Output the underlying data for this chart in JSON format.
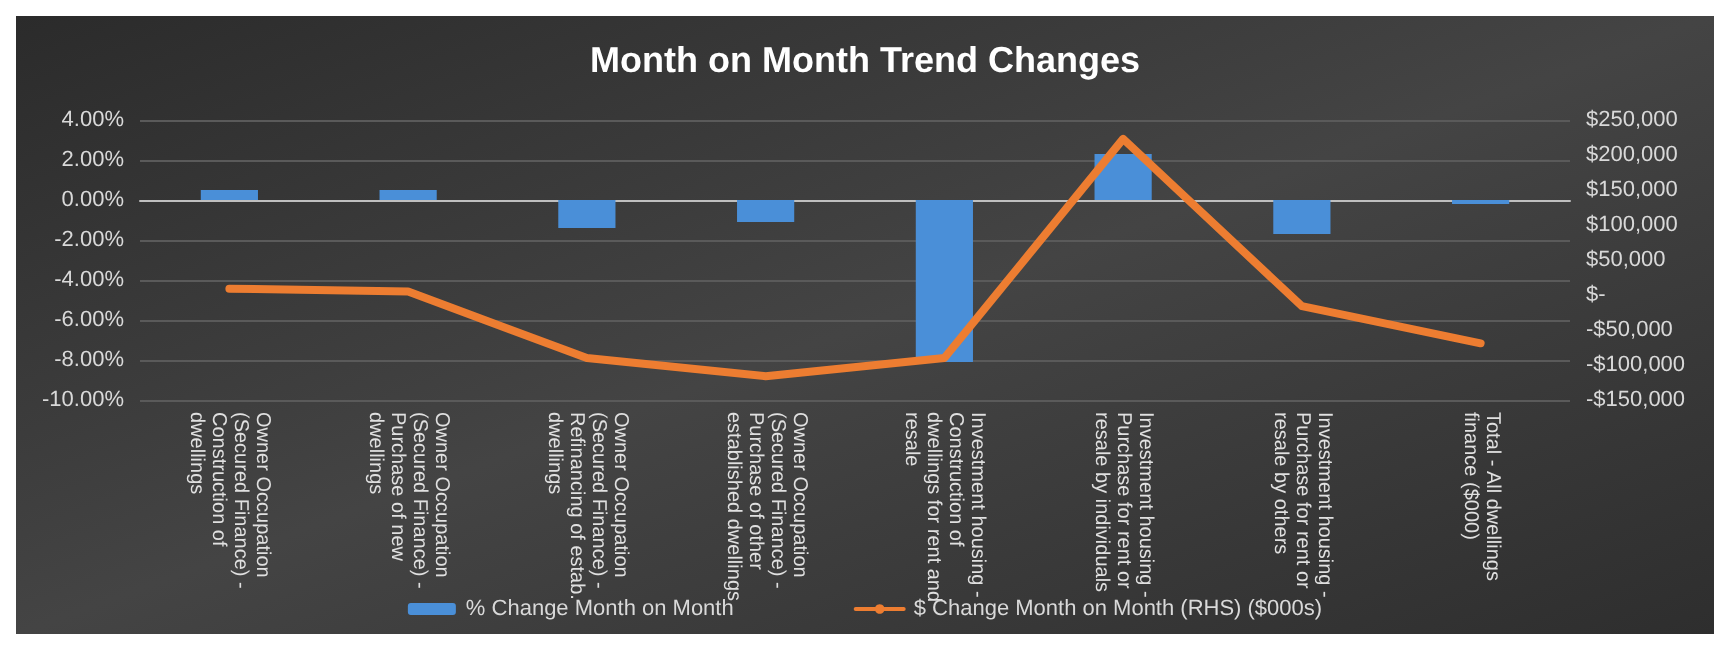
{
  "chart_data": {
    "type": "bar",
    "title": "Month on Month Trend Changes",
    "categories": [
      "Owner Occupation (Secured Finance) - Construction of dwellings",
      "Owner Occupation (Secured Finance) - Purchase of new dwellings",
      "Owner Occupation (Secured Finance) - Refinancing of estab. dwellings",
      "Owner Occupation (Secured Finance) - Purchase of other established dwellings",
      "Investment housing - Construction of dwellings for rent and resale",
      "Investment housing - Purchase for rent or resale by individuals",
      "Investment housing - Purchase for rent or resale by others",
      "Total - All dwellings finance ($000)"
    ],
    "series": [
      {
        "name": "% Change Month on Month",
        "color": "#4a8fd8",
        "values": [
          0.5,
          0.5,
          -1.4,
          -1.1,
          -8.1,
          2.3,
          -1.7,
          -0.2
        ]
      },
      {
        "name": "$ Change Month on Month (RHS) ($000s)",
        "type": "line",
        "axis": "y2",
        "color": "#ed7d31",
        "values": [
          9000,
          5000,
          -90000,
          -116000,
          -90000,
          223000,
          -16000,
          -69000
        ]
      }
    ],
    "ylim": [
      -10,
      4
    ],
    "yticks": [
      {
        "value": 4,
        "label": "4.00%"
      },
      {
        "value": 2,
        "label": "2.00%"
      },
      {
        "value": 0,
        "label": "0.00%"
      },
      {
        "value": -2,
        "label": "-2.00%"
      },
      {
        "value": -4,
        "label": "-4.00%"
      },
      {
        "value": -6,
        "label": "-6.00%"
      },
      {
        "value": -8,
        "label": "-8.00%"
      },
      {
        "value": -10,
        "label": "-10.00%"
      }
    ],
    "y2lim": [
      -150000,
      250000
    ],
    "y2ticks": [
      {
        "value": 250000,
        "label": "$250,000"
      },
      {
        "value": 200000,
        "label": "$200,000"
      },
      {
        "value": 150000,
        "label": "$150,000"
      },
      {
        "value": 100000,
        "label": "$100,000"
      },
      {
        "value": 50000,
        "label": "$50,000"
      },
      {
        "value": 0,
        "label": "$-"
      },
      {
        "value": -50000,
        "label": "-$50,000"
      },
      {
        "value": -100000,
        "label": "-$100,000"
      },
      {
        "value": -150000,
        "label": "-$150,000"
      }
    ],
    "grid": "y",
    "legend": "bottom",
    "marker": "none",
    "line_style": "solid"
  }
}
